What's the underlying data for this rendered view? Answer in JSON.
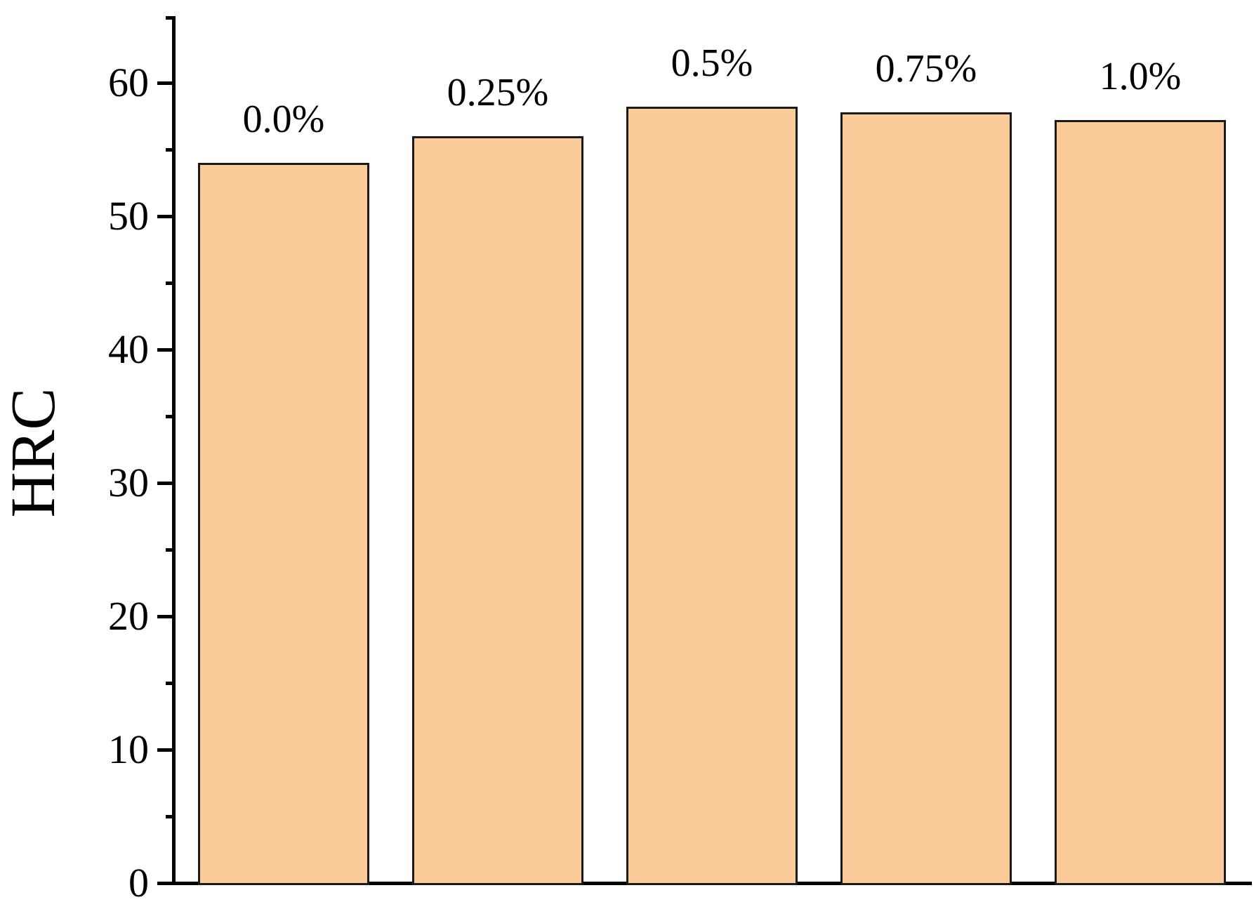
{
  "chart_data": {
    "type": "bar",
    "title": "",
    "xlabel": "",
    "ylabel": "HRC",
    "categories": [
      "0.0%",
      "0.25%",
      "0.5%",
      "0.75%",
      "1.0%"
    ],
    "values": [
      54.0,
      56.0,
      58.2,
      57.8,
      57.2
    ],
    "bar_labels": [
      "0.0%",
      "0.25%",
      "0.5%",
      "0.75%",
      "1.0%"
    ],
    "ylim": [
      0,
      65
    ],
    "yticks_major": [
      0,
      10,
      20,
      30,
      40,
      50,
      60
    ],
    "yticks_minor": [
      5,
      15,
      25,
      35,
      45,
      55,
      65
    ],
    "grid": false,
    "legend": null,
    "colors": {
      "bar_fill": "#FACB98",
      "bar_border": "#1a1a1a",
      "axis": "#000000",
      "text": "#000000",
      "background": "#ffffff"
    }
  }
}
